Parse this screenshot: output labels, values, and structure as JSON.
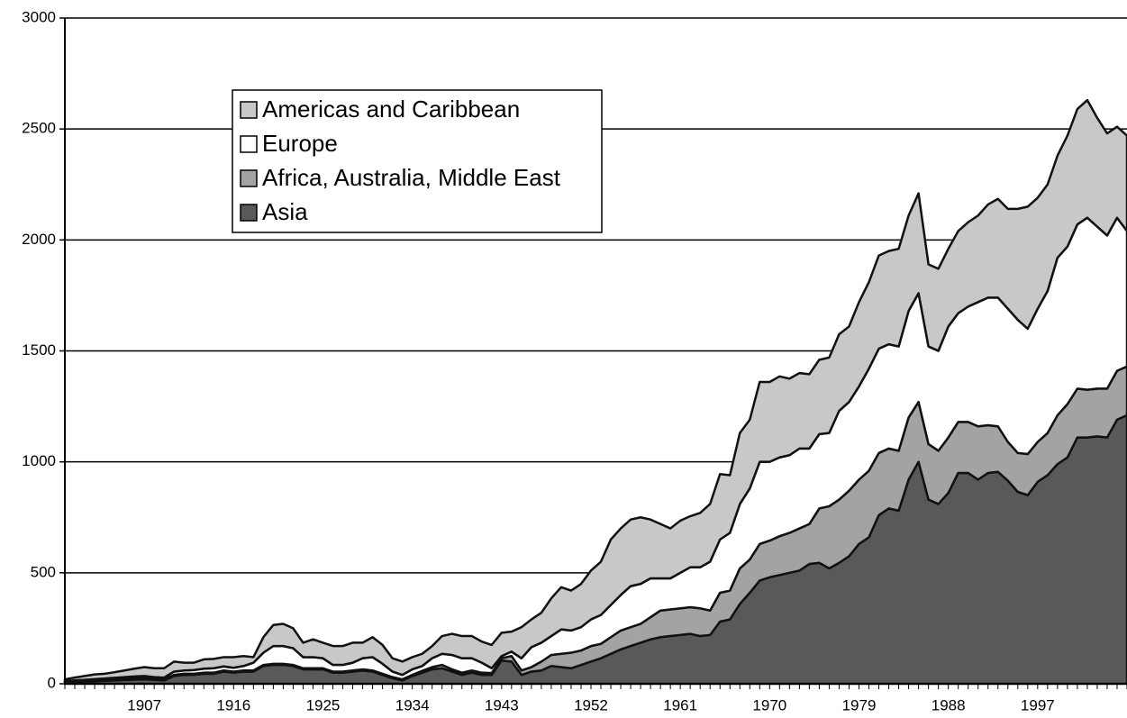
{
  "chart_data": {
    "type": "stacked_area",
    "categories": [
      null,
      null,
      null,
      null,
      null,
      null,
      null,
      null,
      "1907",
      null,
      null,
      null,
      null,
      null,
      null,
      null,
      null,
      "1916",
      null,
      null,
      null,
      null,
      null,
      null,
      null,
      null,
      "1925",
      null,
      null,
      null,
      null,
      null,
      null,
      null,
      null,
      "1934",
      null,
      null,
      null,
      null,
      null,
      null,
      null,
      null,
      "1943",
      null,
      null,
      null,
      null,
      null,
      null,
      null,
      null,
      "1952",
      null,
      null,
      null,
      null,
      null,
      null,
      null,
      null,
      "1961",
      null,
      null,
      null,
      null,
      null,
      null,
      null,
      null,
      "1970",
      null,
      null,
      null,
      null,
      null,
      null,
      null,
      null,
      "1979",
      null,
      null,
      null,
      null,
      null,
      null,
      null,
      null,
      "1988",
      null,
      null,
      null,
      null,
      null,
      null,
      null,
      null,
      "1997",
      null,
      null,
      null,
      null,
      null,
      null,
      null,
      null,
      null
    ],
    "series": [
      {
        "name": "Asia",
        "color": "#58595b",
        "values": [
          5,
          7,
          9,
          11,
          13,
          15,
          17,
          19,
          20,
          18,
          15,
          35,
          40,
          40,
          45,
          45,
          55,
          50,
          55,
          55,
          80,
          85,
          85,
          80,
          65,
          65,
          65,
          50,
          50,
          55,
          60,
          55,
          40,
          25,
          15,
          35,
          50,
          65,
          70,
          55,
          40,
          50,
          40,
          40,
          105,
          100,
          40,
          55,
          60,
          80,
          75,
          70,
          85,
          100,
          115,
          135,
          155,
          170,
          185,
          200,
          210,
          215,
          220,
          225,
          215,
          220,
          280,
          290,
          360,
          410,
          465,
          480,
          490,
          500,
          510,
          540,
          545,
          520,
          545,
          575,
          630,
          660,
          760,
          790,
          780,
          920,
          1000,
          830,
          810,
          860,
          950,
          950,
          920,
          950,
          955,
          915,
          865,
          850,
          910,
          940,
          990,
          1020,
          1110,
          1110,
          1115,
          1110,
          1190,
          1210
        ]
      },
      {
        "name": "Africa, Australia, Middle East",
        "color": "#a3a3a3",
        "values": [
          3,
          3,
          3,
          3,
          3,
          3,
          3,
          4,
          5,
          4,
          5,
          5,
          5,
          5,
          5,
          5,
          5,
          5,
          5,
          5,
          5,
          5,
          5,
          5,
          5,
          5,
          5,
          5,
          5,
          5,
          5,
          5,
          5,
          5,
          5,
          5,
          8,
          10,
          15,
          10,
          10,
          10,
          10,
          8,
          10,
          25,
          20,
          20,
          40,
          50,
          60,
          70,
          65,
          70,
          65,
          75,
          85,
          85,
          85,
          100,
          120,
          120,
          120,
          120,
          125,
          110,
          130,
          130,
          160,
          150,
          165,
          165,
          175,
          180,
          190,
          180,
          245,
          280,
          285,
          295,
          290,
          300,
          280,
          270,
          270,
          280,
          270,
          250,
          240,
          250,
          230,
          230,
          240,
          215,
          205,
          175,
          175,
          185,
          180,
          190,
          220,
          240,
          220,
          215,
          215,
          220,
          220,
          220
        ]
      },
      {
        "name": "Europe",
        "color": "#ffffff",
        "values": [
          4,
          5,
          6,
          7,
          8,
          9,
          10,
          10,
          10,
          8,
          8,
          15,
          15,
          17,
          18,
          20,
          18,
          17,
          20,
          35,
          55,
          80,
          80,
          75,
          50,
          50,
          45,
          30,
          30,
          35,
          50,
          60,
          45,
          25,
          20,
          25,
          22,
          40,
          50,
          65,
          65,
          55,
          45,
          22,
          10,
          20,
          55,
          90,
          85,
          85,
          110,
          100,
          105,
          120,
          130,
          145,
          160,
          185,
          180,
          175,
          145,
          140,
          160,
          180,
          185,
          220,
          240,
          260,
          290,
          320,
          370,
          355,
          355,
          350,
          360,
          340,
          335,
          330,
          400,
          400,
          420,
          460,
          470,
          470,
          470,
          480,
          490,
          440,
          450,
          500,
          490,
          520,
          560,
          575,
          580,
          600,
          600,
          565,
          600,
          640,
          710,
          710,
          740,
          775,
          730,
          690,
          690,
          610
        ]
      },
      {
        "name": "Americas and Caribbean",
        "color": "#c8c8c8",
        "values": [
          8,
          13,
          17,
          21,
          21,
          25,
          30,
          35,
          40,
          40,
          42,
          45,
          35,
          33,
          42,
          42,
          42,
          48,
          45,
          25,
          70,
          95,
          100,
          90,
          65,
          80,
          70,
          85,
          85,
          90,
          70,
          90,
          85,
          60,
          60,
          55,
          55,
          55,
          80,
          95,
          100,
          100,
          95,
          105,
          105,
          90,
          140,
          125,
          135,
          170,
          190,
          180,
          195,
          220,
          240,
          295,
          300,
          300,
          300,
          265,
          245,
          225,
          235,
          230,
          245,
          260,
          295,
          260,
          320,
          310,
          360,
          360,
          365,
          345,
          340,
          335,
          335,
          340,
          345,
          340,
          380,
          390,
          420,
          420,
          440,
          430,
          450,
          370,
          370,
          350,
          370,
          380,
          390,
          420,
          445,
          450,
          500,
          550,
          500,
          480,
          460,
          500,
          520,
          530,
          490,
          460,
          410,
          430
        ]
      }
    ],
    "ylim": [
      0,
      3000
    ],
    "yticks": [
      0,
      500,
      1000,
      1500,
      2000,
      2500,
      3000
    ],
    "grid": true,
    "legend": "upper left"
  }
}
